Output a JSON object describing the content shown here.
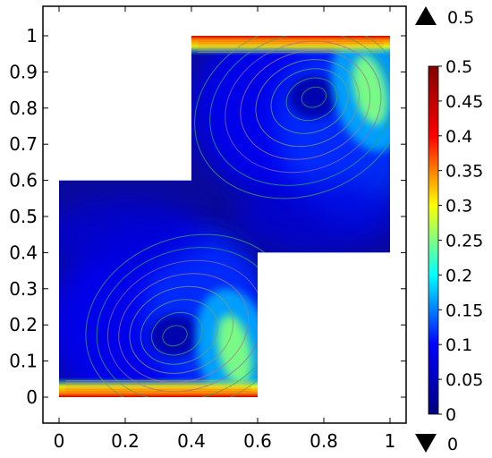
{
  "chart_data": {
    "type": "heatmap",
    "title": "",
    "xlabel": "",
    "ylabel": "",
    "xlim": [
      0,
      1
    ],
    "ylim": [
      0,
      1
    ],
    "x_ticks": [
      "0",
      "0.2",
      "0.4",
      "0.6",
      "0.8",
      "1"
    ],
    "y_ticks": [
      "0",
      "0.1",
      "0.2",
      "0.3",
      "0.4",
      "0.5",
      "0.6",
      "0.7",
      "0.8",
      "0.9",
      "1"
    ],
    "domain_outline": [
      [
        0,
        0
      ],
      [
        0.6,
        0
      ],
      [
        0.6,
        0.4
      ],
      [
        1,
        0.4
      ],
      [
        1,
        1
      ],
      [
        0.4,
        1
      ],
      [
        0.4,
        0.6
      ],
      [
        0,
        0.6
      ]
    ],
    "colorbar": {
      "min": 0,
      "max": 0.5,
      "ticks": [
        "0",
        "0.05",
        "0.1",
        "0.15",
        "0.2",
        "0.25",
        "0.3",
        "0.35",
        "0.4",
        "0.45",
        "0.5"
      ],
      "max_label": "0.5",
      "min_label": "0",
      "colormap": [
        "#000080",
        "#0000ff",
        "#00ffff",
        "#ffff00",
        "#ff0000",
        "#800000"
      ]
    },
    "vortices": [
      {
        "center": [
          0.35,
          0.17
        ],
        "note": "lower-left cell"
      },
      {
        "center": [
          0.77,
          0.83
        ],
        "note": "upper-right cell"
      }
    ],
    "hotspots": [
      {
        "x": 0.53,
        "y": 0.13,
        "value": 0.25
      },
      {
        "x": 0.94,
        "y": 0.85,
        "value": 0.25
      },
      {
        "x": 0.31,
        "y": 0.0,
        "value": 0.5
      },
      {
        "x": 0.69,
        "y": 1.0,
        "value": 0.5
      }
    ]
  }
}
